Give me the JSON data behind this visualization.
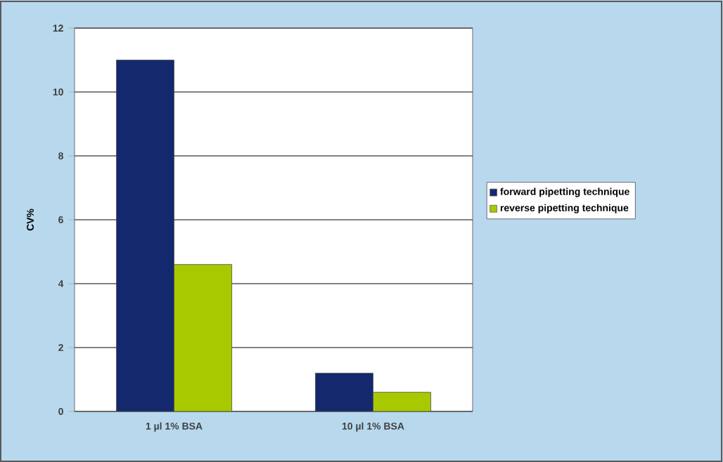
{
  "chart_data": {
    "type": "bar",
    "ylabel": "CV%",
    "categories": [
      "1 µl 1% BSA",
      "10 µl 1% BSA"
    ],
    "series": [
      {
        "name": "forward pipetting technique",
        "color": "#14286e",
        "values": [
          11.0,
          1.2
        ]
      },
      {
        "name": "reverse pipetting technique",
        "color": "#a8c800",
        "values": [
          4.6,
          0.6
        ]
      }
    ],
    "ylim": [
      0,
      12
    ],
    "yticks": [
      0,
      2,
      4,
      6,
      8,
      10,
      12
    ],
    "grid": "y",
    "legend": "right"
  }
}
